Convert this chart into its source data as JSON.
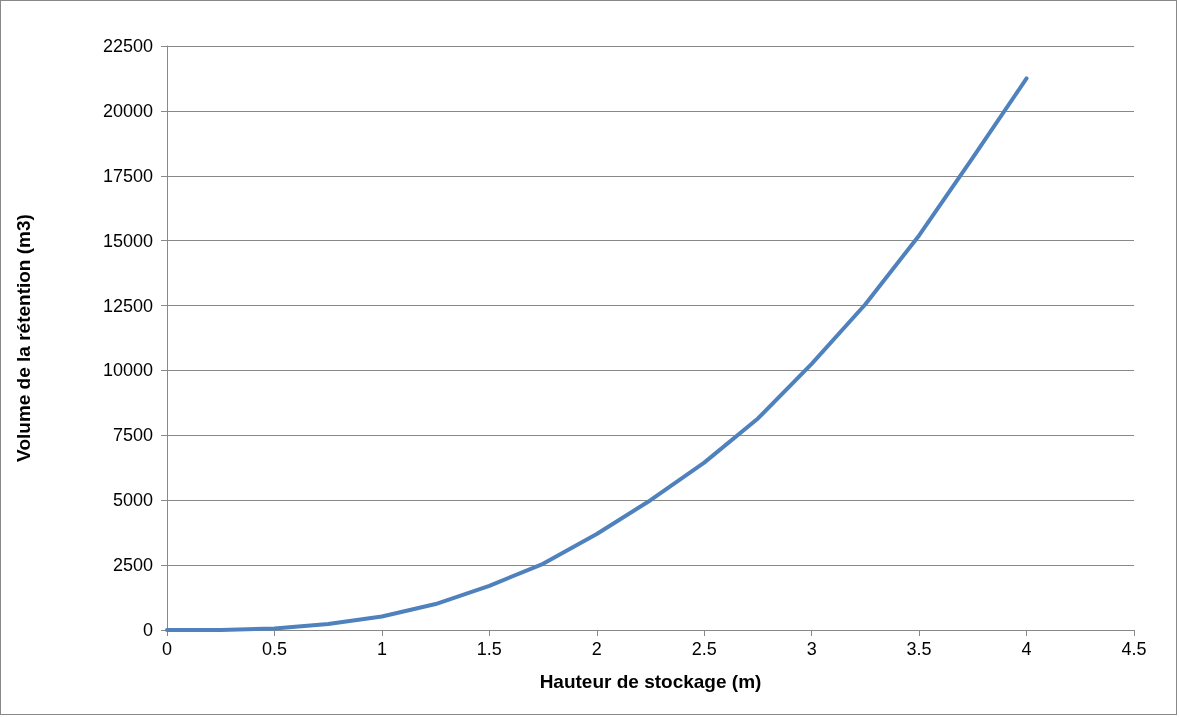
{
  "chart_data": {
    "type": "line",
    "xlabel": "Hauteur de stockage (m)",
    "ylabel": "Volume de la rétention (m3)",
    "x": [
      0,
      0.25,
      0.5,
      0.75,
      1,
      1.25,
      1.5,
      1.75,
      2,
      2.25,
      2.5,
      2.75,
      3,
      3.25,
      3.5,
      3.75,
      4
    ],
    "series": [
      {
        "color": "#4f81bd",
        "values": [
          0,
          0,
          60,
          230,
          520,
          1000,
          1700,
          2550,
          3700,
          5000,
          6450,
          8150,
          10250,
          12550,
          15200,
          18200,
          21250
        ]
      }
    ],
    "xlim": [
      0,
      4.5
    ],
    "xticks": [
      0,
      0.5,
      1,
      1.5,
      2,
      2.5,
      3,
      3.5,
      4,
      4.5
    ],
    "ylim": [
      0,
      22500
    ],
    "yticks": [
      0,
      2500,
      5000,
      7500,
      10000,
      12500,
      15000,
      17500,
      20000,
      22500
    ],
    "grid": "y",
    "marker": "none",
    "line_style": "solid"
  }
}
